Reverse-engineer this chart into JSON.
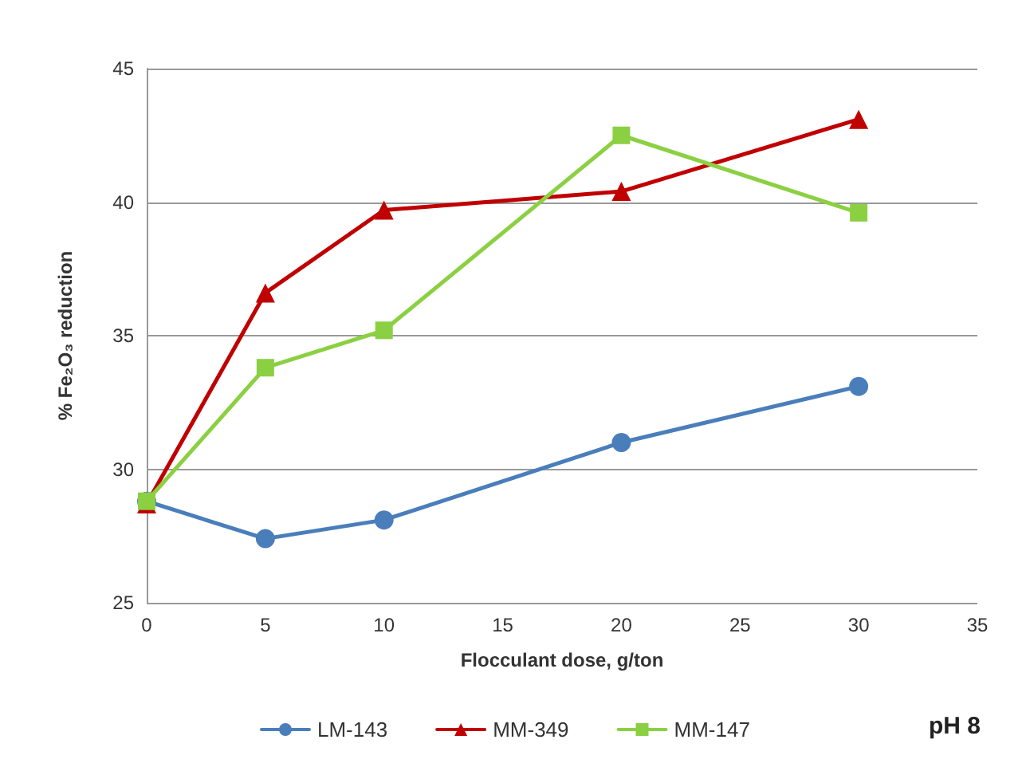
{
  "chart_data": {
    "type": "line",
    "xlabel": "Flocculant dose, g/ton",
    "ylabel": "% Fe₂O₃ reduction",
    "x": [
      0,
      5,
      10,
      20,
      30
    ],
    "series": [
      {
        "name": "LM-143",
        "color": "#4a7ebb",
        "marker": "circle",
        "values": [
          28.8,
          27.4,
          28.1,
          31.0,
          33.1
        ]
      },
      {
        "name": "MM-349",
        "color": "#c00000",
        "marker": "triangle",
        "values": [
          28.7,
          36.6,
          39.7,
          40.4,
          43.1
        ]
      },
      {
        "name": "MM-147",
        "color": "#8bd042",
        "marker": "square",
        "values": [
          28.8,
          33.8,
          35.2,
          42.5,
          39.6
        ]
      }
    ],
    "xlim": [
      0,
      35
    ],
    "xticks": [
      0,
      5,
      10,
      15,
      20,
      25,
      30,
      35
    ],
    "ylim": [
      25,
      45
    ],
    "yticks": [
      25,
      30,
      35,
      40,
      45
    ],
    "grid": "y",
    "legend": "bottom",
    "line_style": "solid",
    "annotations": [
      "pH 8"
    ]
  }
}
